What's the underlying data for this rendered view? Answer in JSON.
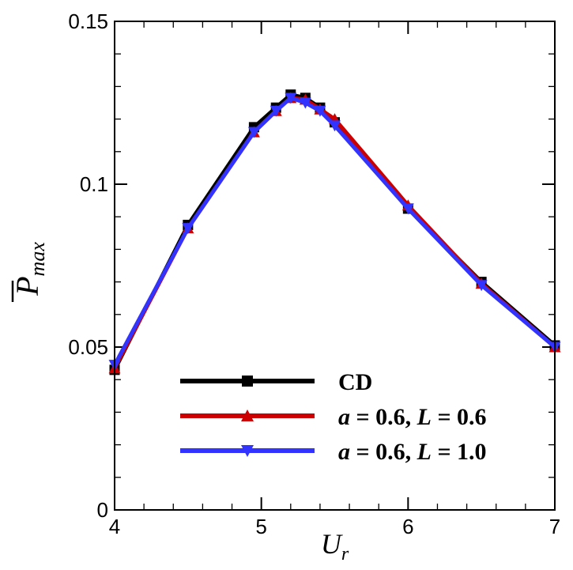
{
  "chart_data": {
    "type": "line",
    "xlabel": "U",
    "xlabel_sub": "r",
    "ylabel": "P",
    "ylabel_sub": "max",
    "xlim": [
      4,
      7
    ],
    "ylim": [
      0,
      0.15
    ],
    "xticks": [
      4,
      5,
      6,
      7
    ],
    "xtick_labels": [
      "4",
      "5",
      "6",
      "7"
    ],
    "yticks": [
      0,
      0.05,
      0.1,
      0.15
    ],
    "ytick_labels": [
      "0",
      "0.05",
      "0.1",
      "0.15"
    ],
    "grid": false,
    "legend_position": "bottom-right",
    "series": [
      {
        "name": "CD",
        "legend_parts": [
          "CD"
        ],
        "color": "#000000",
        "marker": "square",
        "x": [
          4.0,
          4.5,
          4.95,
          5.1,
          5.2,
          5.3,
          5.4,
          5.5,
          6.0,
          6.5,
          7.0
        ],
        "y": [
          0.043,
          0.0875,
          0.1175,
          0.1235,
          0.1275,
          0.1265,
          0.1235,
          0.119,
          0.0925,
          0.07,
          0.0505
        ]
      },
      {
        "name": "a = 0.6, L = 0.6",
        "legend_parts": [
          "a",
          " = 0.6, ",
          "L",
          " = 0.6"
        ],
        "color": "#cc0000",
        "marker": "triangle-up",
        "x": [
          4.0,
          4.5,
          4.95,
          5.1,
          5.2,
          5.3,
          5.4,
          5.5,
          6.0,
          6.5,
          7.0
        ],
        "y": [
          0.0435,
          0.0865,
          0.116,
          0.1225,
          0.1265,
          0.126,
          0.123,
          0.12,
          0.0935,
          0.0695,
          0.05
        ]
      },
      {
        "name": "a = 0.6, L = 1.0",
        "legend_parts": [
          "a",
          " = 0.6, ",
          "L",
          " = 1.0"
        ],
        "color": "#3333ff",
        "marker": "triangle-down",
        "x": [
          4.0,
          4.5,
          4.95,
          5.1,
          5.2,
          5.3,
          5.4,
          5.5,
          6.0,
          6.5,
          7.0
        ],
        "y": [
          0.0445,
          0.0865,
          0.116,
          0.1225,
          0.1265,
          0.125,
          0.1225,
          0.118,
          0.0925,
          0.069,
          0.05
        ]
      }
    ]
  }
}
